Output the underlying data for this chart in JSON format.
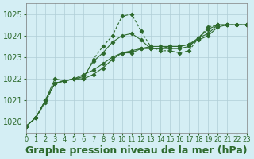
{
  "bg_color": "#d4eef4",
  "grid_color": "#b0cdd6",
  "line_color": "#2d6a2d",
  "marker_color": "#2d6a2d",
  "title": "Graphe pression niveau de la mer (hPa)",
  "xlabel": "Graphe pression niveau de la mer (hPa)",
  "xlim": [
    0,
    23
  ],
  "ylim": [
    1019.5,
    1025.5
  ],
  "yticks": [
    1020,
    1021,
    1022,
    1023,
    1024,
    1025
  ],
  "xticks": [
    0,
    1,
    2,
    3,
    4,
    5,
    6,
    7,
    8,
    9,
    10,
    11,
    12,
    13,
    14,
    15,
    16,
    17,
    18,
    19,
    20,
    21,
    22,
    23
  ],
  "series": [
    [
      1019.8,
      1020.2,
      1020.9,
      1021.8,
      1021.9,
      1022.0,
      1022.0,
      1022.9,
      1023.5,
      1024.0,
      1024.9,
      1025.0,
      1024.2,
      1023.5,
      1023.3,
      1023.3,
      1023.2,
      1023.3,
      1023.9,
      1024.4,
      1024.5,
      1024.5,
      1024.5,
      1024.5
    ],
    [
      1019.8,
      1020.2,
      1021.0,
      1021.8,
      1021.9,
      1022.0,
      1022.0,
      1022.2,
      1022.5,
      1022.9,
      1023.2,
      1023.2,
      1023.4,
      1023.4,
      1023.4,
      1023.5,
      1023.5,
      1023.6,
      1023.8,
      1024.0,
      1024.4,
      1024.5,
      1024.5,
      1024.5
    ],
    [
      1019.8,
      1020.2,
      1021.0,
      1021.8,
      1021.9,
      1022.0,
      1022.2,
      1022.4,
      1022.7,
      1023.0,
      1023.2,
      1023.3,
      1023.4,
      1023.5,
      1023.5,
      1023.5,
      1023.5,
      1023.6,
      1023.9,
      1024.1,
      1024.5,
      1024.5,
      1024.5,
      1024.5
    ],
    [
      1019.8,
      1020.2,
      1021.0,
      1022.0,
      1021.9,
      1022.0,
      1022.1,
      1022.8,
      1023.2,
      1023.7,
      1024.0,
      1024.1,
      1023.8,
      1023.4,
      1023.4,
      1023.4,
      1023.4,
      1023.5,
      1023.9,
      1024.3,
      1024.5,
      1024.5,
      1024.5,
      1024.5
    ]
  ],
  "marker_series": [
    0
  ],
  "title_fontsize": 9,
  "tick_fontsize": 7
}
